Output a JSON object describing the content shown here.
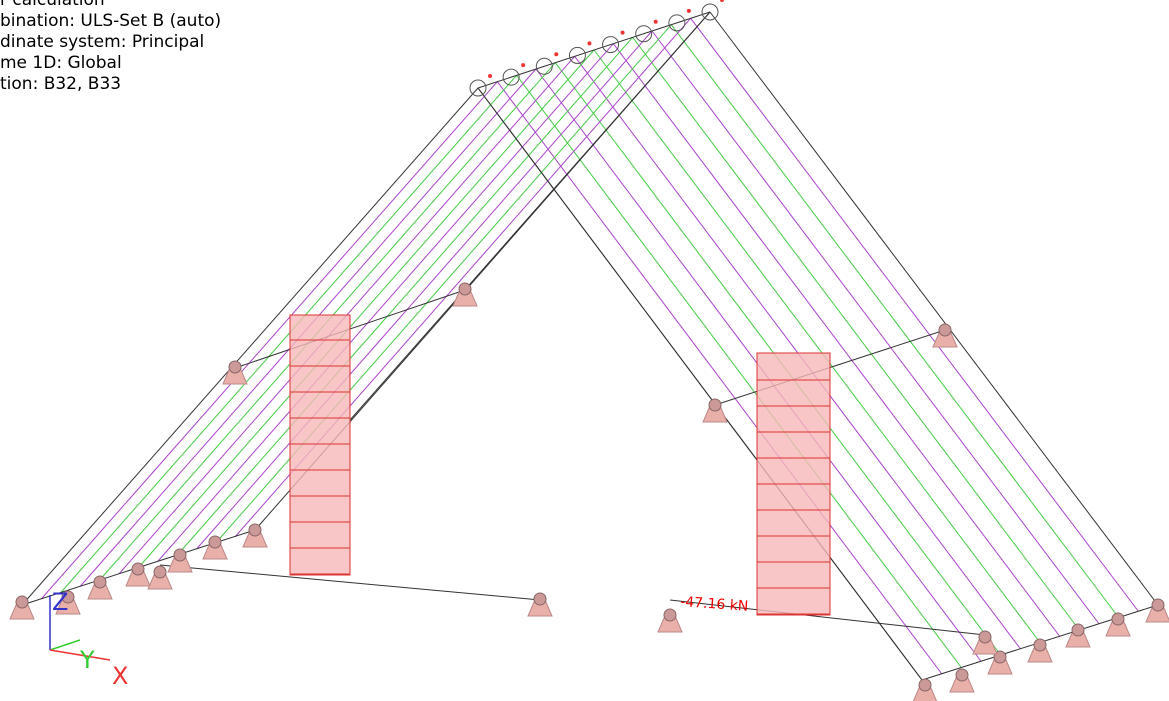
{
  "info": [
    "r calculation",
    "bination: ULS-Set B (auto)",
    "dinate system: Principal",
    "me 1D: Global",
    "tion: B32, B33"
  ],
  "result_label": "-47.16 kN",
  "axes": {
    "z": "Z",
    "y": "Y",
    "x": "X"
  }
}
